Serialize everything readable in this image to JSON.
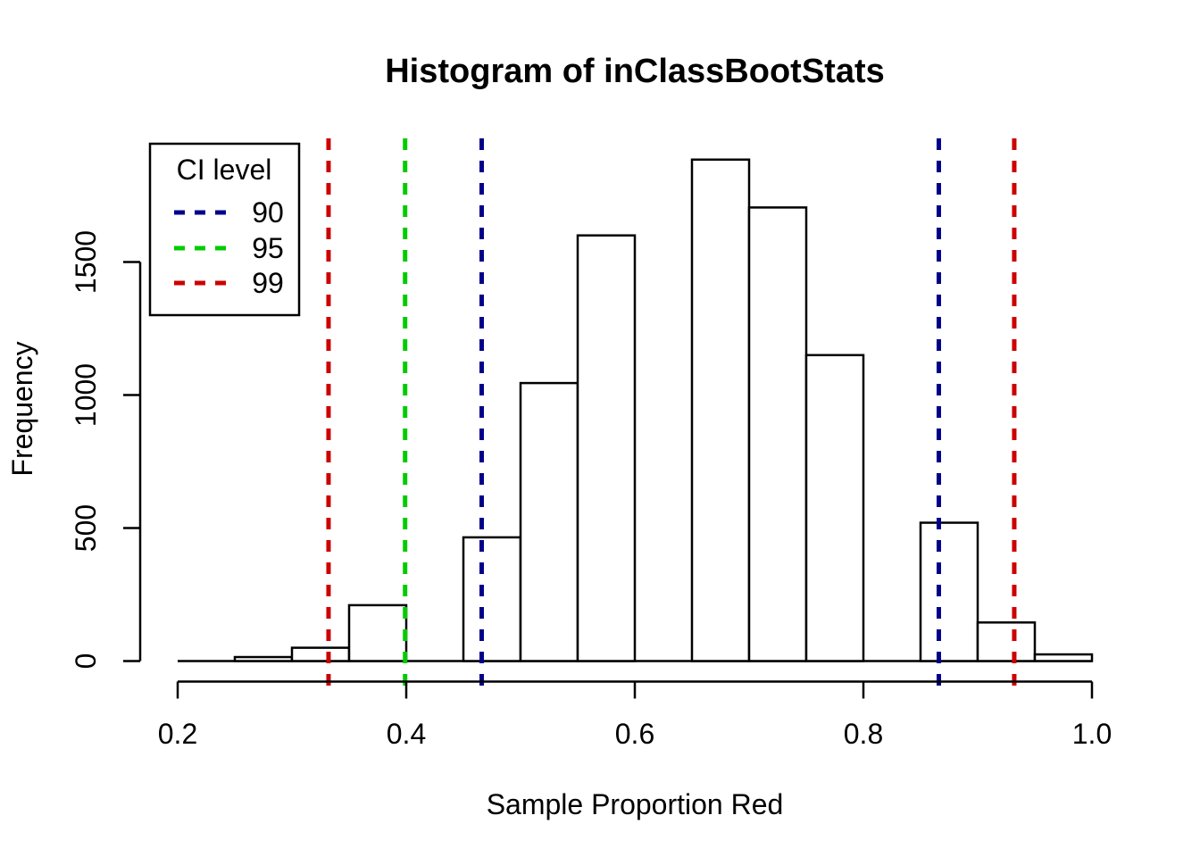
{
  "chart_data": {
    "type": "bar",
    "subtype": "histogram",
    "title": "Histogram of inClassBootStats",
    "xlabel": "Sample Proportion Red",
    "ylabel": "Frequency",
    "xlim": [
      0.2,
      1.0
    ],
    "ylim": [
      0,
      1966
    ],
    "x_tick_values": [
      0.2,
      0.4,
      0.6,
      0.8,
      1.0
    ],
    "x_tick_labels": [
      "0.2",
      "0.4",
      "0.6",
      "0.8",
      "1.0"
    ],
    "y_tick_values": [
      0,
      500,
      1000,
      1500
    ],
    "y_tick_labels": [
      "0",
      "500",
      "1000",
      "1500"
    ],
    "grid": false,
    "bin_start": 0.2,
    "bin_width": 0.05,
    "bin_edges": [
      0.2,
      0.25,
      0.3,
      0.35,
      0.4,
      0.45,
      0.5,
      0.55,
      0.6,
      0.65,
      0.7,
      0.75,
      0.8,
      0.85,
      0.9,
      0.95,
      1.0
    ],
    "counts": [
      0,
      15,
      50,
      210,
      0,
      465,
      1045,
      1600,
      0,
      1885,
      1705,
      1150,
      0,
      520,
      145,
      25
    ],
    "bar_fill": "#ffffff",
    "bar_stroke": "#000000",
    "vlines": [
      {
        "x": 0.332,
        "ci_level": 99,
        "bound": "lower",
        "color": "#CC0000",
        "style": "dashed"
      },
      {
        "x": 0.399,
        "ci_level": 95,
        "bound": "lower",
        "color": "#00CC00",
        "style": "dashed"
      },
      {
        "x": 0.466,
        "ci_level": 90,
        "bound": "lower",
        "color": "#00008B",
        "style": "dashed"
      },
      {
        "x": 0.866,
        "ci_level": 90,
        "bound": "upper",
        "color": "#00008B",
        "style": "dashed"
      },
      {
        "x": 0.932,
        "ci_level": 99,
        "bound": "upper",
        "color": "#CC0000",
        "style": "dashed"
      }
    ],
    "legend": {
      "title": "CI level",
      "position": "top-left",
      "line_style": "dashed",
      "entries": [
        {
          "label": "90",
          "color": "#00008B"
        },
        {
          "label": "95",
          "color": "#00CC00"
        },
        {
          "label": "99",
          "color": "#CC0000"
        }
      ]
    },
    "colors": {
      "axis": "#000000",
      "text": "#000000",
      "background": "#ffffff"
    }
  }
}
